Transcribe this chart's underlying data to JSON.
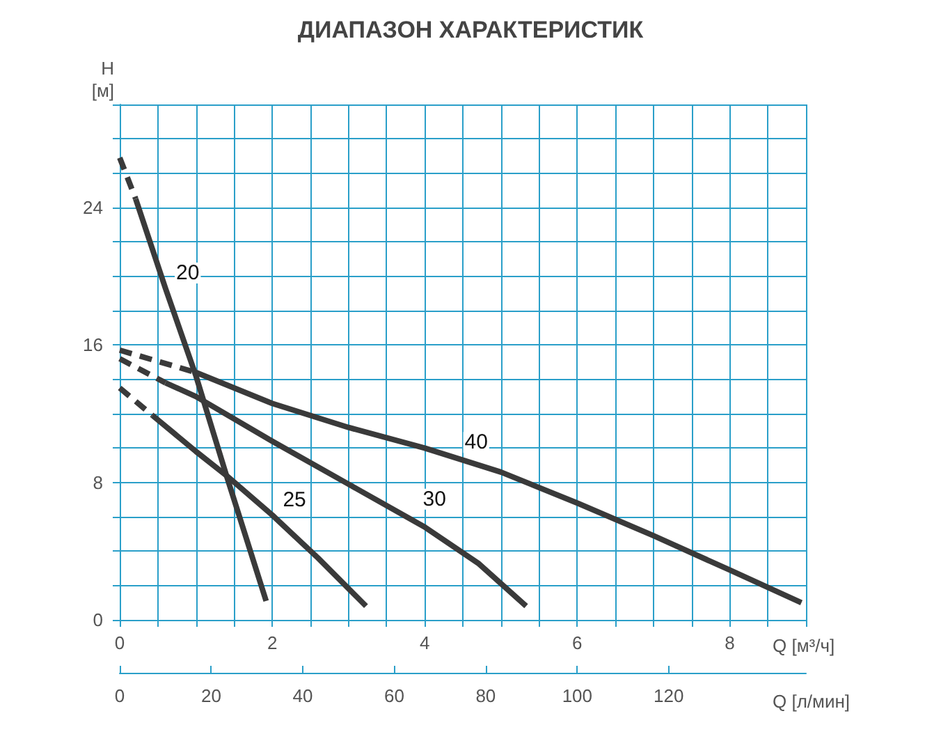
{
  "chart_data": {
    "type": "line",
    "title": "ДИАПАЗОН ХАРАКТЕРИСТИК",
    "ylabel": "H\n[м]",
    "xlabel": "Q [м³/ч]",
    "x2label": "Q [л/мин]",
    "xlim": [
      0,
      9
    ],
    "xticks": [
      0,
      {
        "value": 0.5,
        "label": null
      },
      2,
      {
        "value": 1,
        "label": null
      },
      {
        "value": 1.5,
        "label": null
      },
      {
        "value": 2.5,
        "label": null
      },
      {
        "value": 3,
        "label": null
      },
      {
        "value": 3.5,
        "label": null
      },
      4,
      {
        "value": 4.5,
        "label": null
      },
      {
        "value": 5,
        "label": null
      },
      {
        "value": 5.5,
        "label": null
      },
      6,
      {
        "value": 6.5,
        "label": null
      },
      {
        "value": 7,
        "label": null
      },
      {
        "value": 7.5,
        "label": null
      },
      8,
      {
        "value": 8.5,
        "label": null
      },
      {
        "value": 9,
        "label": null
      }
    ],
    "ylim": [
      0,
      30
    ],
    "yticks": [
      0,
      {
        "value": 2,
        "label": null
      },
      {
        "value": 4,
        "label": null
      },
      {
        "value": 6,
        "label": null
      },
      8,
      {
        "value": 10,
        "label": null
      },
      {
        "value": 12,
        "label": null
      },
      {
        "value": 14,
        "label": null
      },
      16,
      {
        "value": 18,
        "label": null
      },
      {
        "value": 20,
        "label": null
      },
      {
        "value": 22,
        "label": null
      },
      24,
      {
        "value": 26,
        "label": null
      },
      {
        "value": 28,
        "label": null
      },
      {
        "value": 30,
        "label": null
      }
    ],
    "x2lim": [
      0,
      150
    ],
    "x2ticks": [
      0,
      20,
      40,
      60,
      80,
      100,
      120
    ],
    "grid": true,
    "marker": "none",
    "series": [
      {
        "color": "#3a3a3a",
        "line_style": "dashed",
        "x": [
          0,
          0.21
        ],
        "values": [
          26.9,
          24.5
        ]
      },
      {
        "name": "20",
        "color": "#3a3a3a",
        "line_style": "solid",
        "x": [
          0.21,
          0.6,
          1.0,
          1.4,
          1.92
        ],
        "values": [
          24.5,
          19.3,
          14.2,
          8.4,
          1.1
        ]
      },
      {
        "color": "#3a3a3a",
        "line_style": "dashed",
        "x": [
          0,
          0.43
        ],
        "values": [
          13.5,
          11.9
        ]
      },
      {
        "name": "25",
        "color": "#3a3a3a",
        "line_style": "solid",
        "x": [
          0.43,
          1,
          1.4,
          2,
          2.6,
          3.23
        ],
        "values": [
          11.9,
          9.8,
          8.4,
          6.1,
          3.6,
          0.8
        ]
      },
      {
        "color": "#3a3a3a",
        "line_style": "dashed",
        "x": [
          0,
          0.6
        ],
        "values": [
          15.2,
          13.8
        ]
      },
      {
        "name": "30",
        "color": "#3a3a3a",
        "line_style": "solid",
        "x": [
          0.6,
          1,
          2,
          3,
          4,
          4.7,
          5.33
        ],
        "values": [
          13.8,
          13.0,
          10.4,
          7.9,
          5.4,
          3.3,
          0.8
        ]
      },
      {
        "color": "#3a3a3a",
        "line_style": "dashed",
        "x": [
          0,
          1.0
        ],
        "values": [
          15.7,
          14.4
        ]
      },
      {
        "name": "40",
        "color": "#3a3a3a",
        "line_style": "solid",
        "x": [
          1.0,
          2,
          3,
          4,
          5,
          6,
          7,
          8,
          8.94
        ],
        "values": [
          14.4,
          12.6,
          11.2,
          10.0,
          8.6,
          6.8,
          4.9,
          2.9,
          1.0
        ]
      }
    ]
  }
}
